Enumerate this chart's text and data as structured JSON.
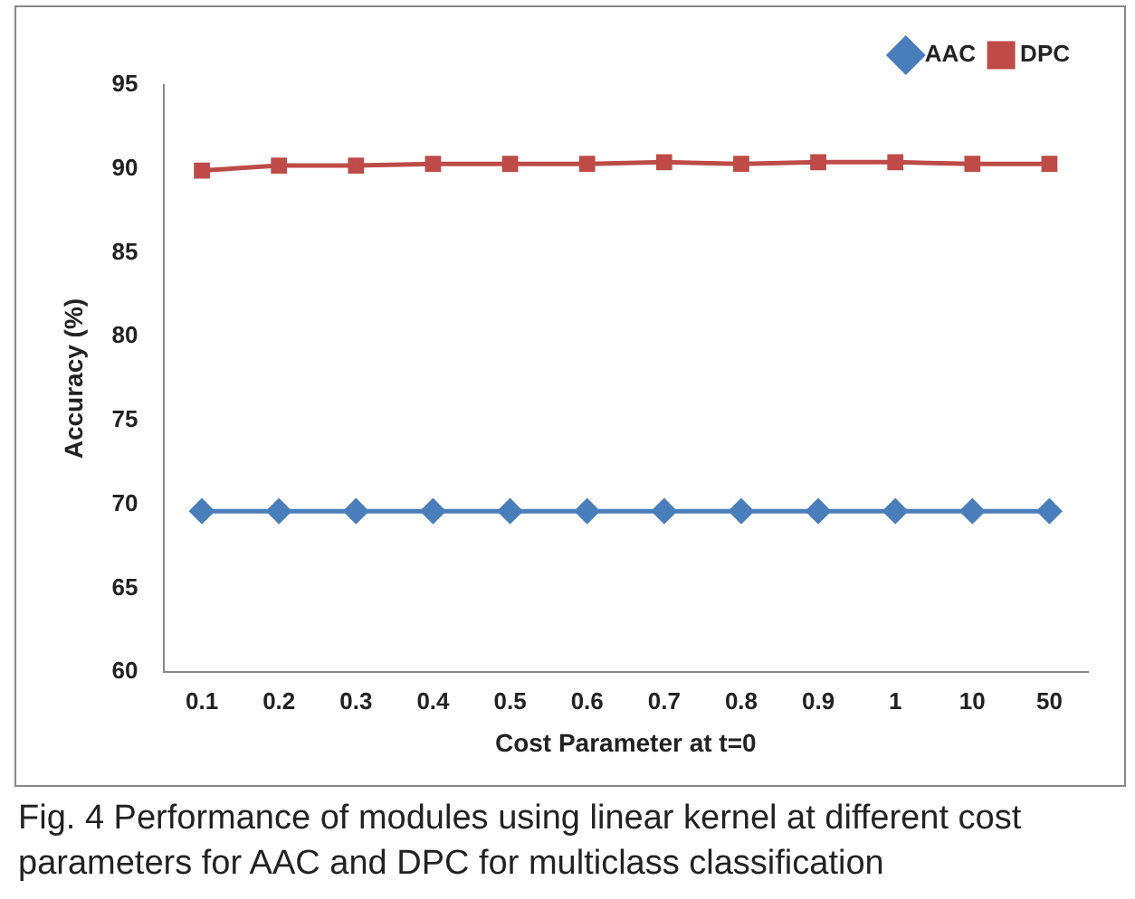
{
  "chart_data": {
    "type": "line",
    "xlabel": "Cost Parameter at t=0",
    "ylabel": "Accuracy (%)",
    "categories": [
      "0.1",
      "0.2",
      "0.3",
      "0.4",
      "0.5",
      "0.6",
      "0.7",
      "0.8",
      "0.9",
      "1",
      "10",
      "50"
    ],
    "series": [
      {
        "name": "AAC",
        "color": "#4a7ebb",
        "marker": "diamond",
        "values": [
          69.6,
          69.6,
          69.6,
          69.6,
          69.6,
          69.6,
          69.6,
          69.6,
          69.6,
          69.6,
          69.6,
          69.6
        ]
      },
      {
        "name": "DPC",
        "color": "#be4b48",
        "marker": "square",
        "values": [
          89.9,
          90.2,
          90.2,
          90.3,
          90.3,
          90.3,
          90.4,
          90.3,
          90.4,
          90.4,
          90.3,
          90.3
        ]
      }
    ],
    "ylim": [
      60,
      95
    ],
    "yticks": [
      60,
      65,
      70,
      75,
      80,
      85,
      90,
      95
    ],
    "grid": false,
    "legend": "top right",
    "annotations": [
      "Fig. 4 Performance of modules using linear kernel at different cost parameters for AAC and DPC for multiclass classification"
    ]
  }
}
